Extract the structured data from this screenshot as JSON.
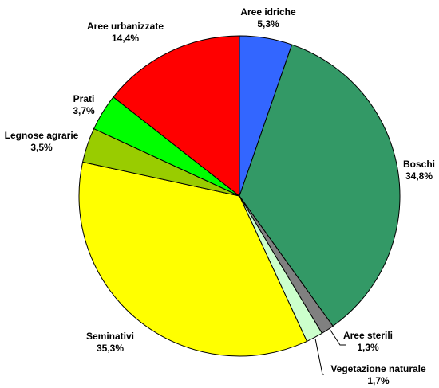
{
  "chart_data": {
    "type": "pie",
    "slices": [
      {
        "label": "Aree idriche",
        "value": 5.3,
        "value_label": "5,3%",
        "color": "#3366ff"
      },
      {
        "label": "Boschi",
        "value": 34.8,
        "value_label": "34,8%",
        "color": "#339966"
      },
      {
        "label": "Aree sterili",
        "value": 1.3,
        "value_label": "1,3%",
        "color": "#808080"
      },
      {
        "label": "Vegetazione naturale",
        "value": 1.7,
        "value_label": "1,7%",
        "color": "#ccffcc"
      },
      {
        "label": "Seminativi",
        "value": 35.3,
        "value_label": "35,3%",
        "color": "#ffff00"
      },
      {
        "label": "Legnose agrarie",
        "value": 3.5,
        "value_label": "3,5%",
        "color": "#99cc00"
      },
      {
        "label": "Prati",
        "value": 3.7,
        "value_label": "3,7%",
        "color": "#00ff00"
      },
      {
        "label": "Aree urbanizzate",
        "value": 14.4,
        "value_label": "14,4%",
        "color": "#ff0000"
      }
    ]
  }
}
